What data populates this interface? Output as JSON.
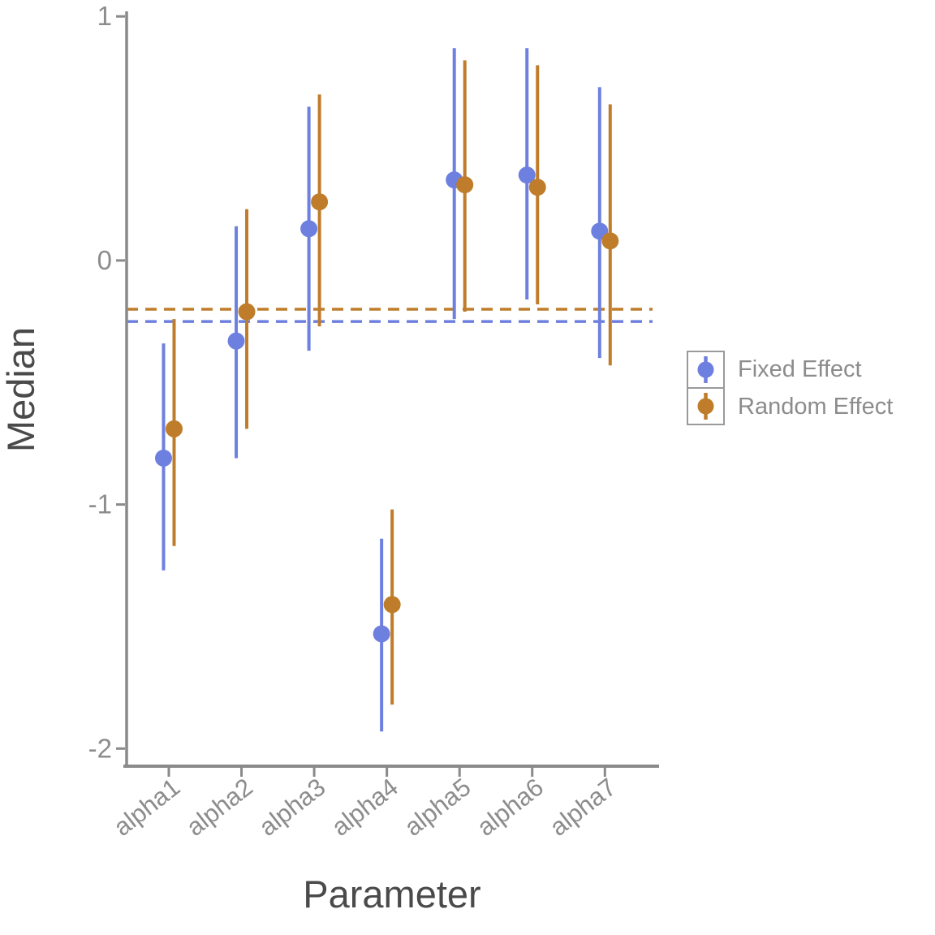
{
  "chart_data": {
    "type": "pointrange",
    "title": "",
    "xlabel": "Parameter",
    "ylabel": "Median",
    "categories": [
      "alpha1",
      "alpha2",
      "alpha3",
      "alpha4",
      "alpha5",
      "alpha6",
      "alpha7"
    ],
    "yticks": [
      1,
      0,
      -1,
      -2
    ],
    "ylim": [
      -2.07,
      1.07
    ],
    "grid": false,
    "legend": {
      "position": "right",
      "items": [
        "Fixed Effect",
        "Random Effect"
      ]
    },
    "series": [
      {
        "name": "Fixed Effect",
        "color": "#6e80df",
        "median": [
          -0.81,
          -0.33,
          0.13,
          -1.53,
          0.33,
          0.35,
          0.12
        ],
        "lower": [
          -1.27,
          -0.81,
          -0.37,
          -1.93,
          -0.24,
          -0.16,
          -0.4
        ],
        "upper": [
          -0.34,
          0.14,
          0.63,
          -1.14,
          0.87,
          0.87,
          0.71
        ],
        "dashed_hline": -0.25
      },
      {
        "name": "Random Effect",
        "color": "#bf7d2b",
        "median": [
          -0.69,
          -0.21,
          0.24,
          -1.41,
          0.31,
          0.3,
          0.08
        ],
        "lower": [
          -1.17,
          -0.69,
          -0.27,
          -1.82,
          -0.21,
          -0.18,
          -0.43
        ],
        "upper": [
          -0.24,
          0.21,
          0.68,
          -1.02,
          0.82,
          0.8,
          0.64
        ],
        "dashed_hline": -0.2
      }
    ]
  },
  "styles": {
    "background": "#ffffff",
    "axis_line_color": "#8a8a8a",
    "tick_label_color": "#8c8c8c",
    "axis_title_color": "#4a4a4a",
    "legend_border_color": "#9a9a9a",
    "legend_text_color": "#8c8c8c",
    "fixed_effect_color": "#6e80df",
    "random_effect_color": "#bf7d2b"
  }
}
